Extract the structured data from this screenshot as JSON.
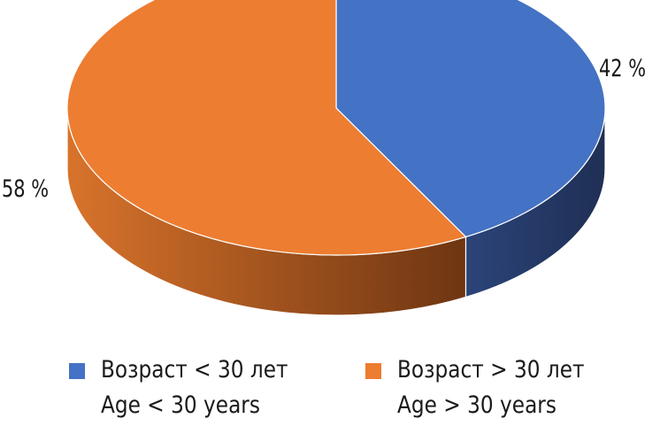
{
  "chart_data": {
    "type": "pie",
    "style": "3d",
    "slices": [
      {
        "label_ru": "Возраст < 30 лет",
        "label_en": "Age < 30 years",
        "value": 42,
        "value_label": "42 %",
        "color": "#4472c4",
        "side_color": "#1f2f55"
      },
      {
        "label_ru": "Возраст > 30 лет",
        "label_en": "Age > 30 years",
        "value": 58,
        "value_label": "58 %",
        "color": "#ed7d31",
        "side_color": "#a8531b"
      }
    ],
    "legend_position": "bottom"
  }
}
